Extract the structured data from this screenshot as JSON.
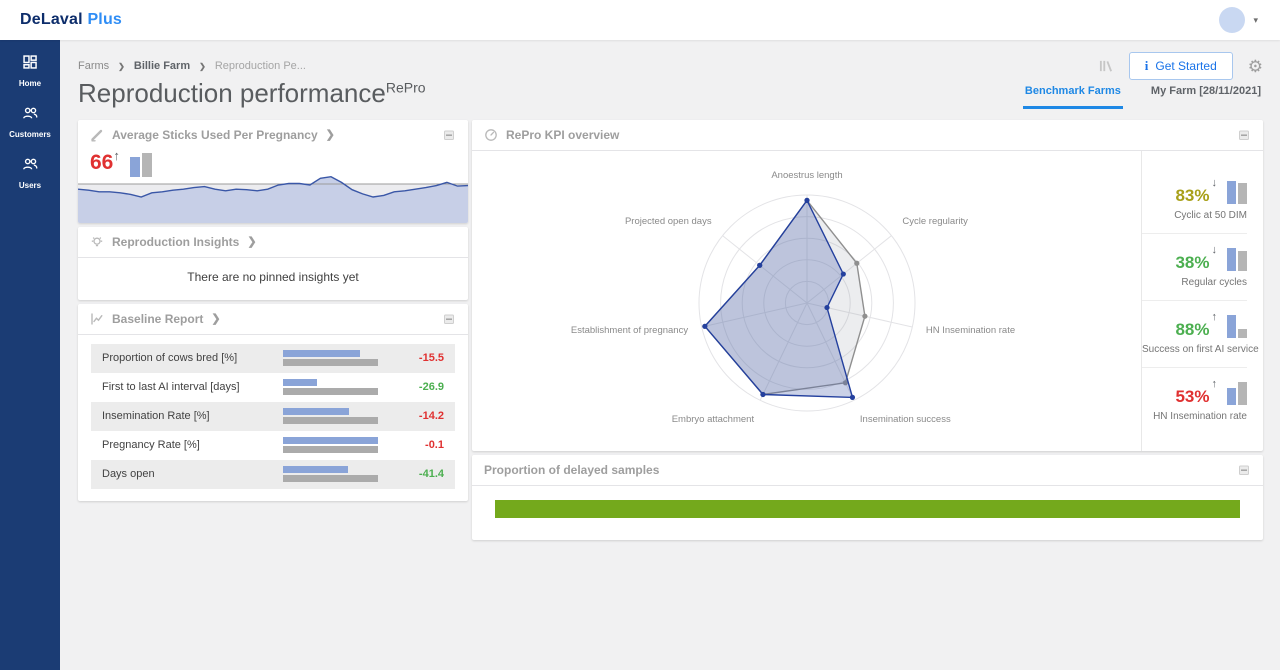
{
  "header": {
    "logo_primary": "DeLaval",
    "logo_secondary": "Plus"
  },
  "sidebar": {
    "items": [
      {
        "label": "Home",
        "icon": "dashboard-icon"
      },
      {
        "label": "Customers",
        "icon": "people-icon"
      },
      {
        "label": "Users",
        "icon": "people-icon"
      }
    ]
  },
  "page": {
    "breadcrumb": [
      "Farms",
      "Billie Farm",
      "Reproduction Pe..."
    ],
    "title": "Reproduction performance",
    "title_superscript": "RePro",
    "get_started_label": "Get Started",
    "tabs": [
      {
        "label": "Benchmark Farms",
        "active": true
      },
      {
        "label": "My Farm [28/11/2021]",
        "active": false
      }
    ]
  },
  "cards": {
    "avg_sticks": {
      "title": "Average Sticks Used Per Pregnancy",
      "value": "66",
      "trend": "up",
      "value_color": "#e03131",
      "mini_bars": {
        "farm": 0.8,
        "benchmark": 0.95
      }
    },
    "insights": {
      "title": "Reproduction Insights",
      "empty_message": "There are no pinned insights yet"
    },
    "baseline": {
      "title": "Baseline Report"
    },
    "kpi_overview": {
      "title": "RePro KPI overview",
      "kpis": [
        {
          "value": "83%",
          "trend": "down",
          "color": "#a8a019",
          "label": "Cyclic at 50 DIM",
          "bars": {
            "farm": 0.88,
            "benchmark": 0.82
          }
        },
        {
          "value": "38%",
          "trend": "down",
          "color": "#4caf50",
          "label": "Regular cycles",
          "bars": {
            "farm": 0.9,
            "benchmark": 0.75
          }
        },
        {
          "value": "88%",
          "trend": "up",
          "color": "#4caf50",
          "label": "Success on first AI service",
          "bars": {
            "farm": 0.9,
            "benchmark": 0.35
          }
        },
        {
          "value": "53%",
          "trend": "up",
          "color": "#e03131",
          "label": "HN Insemination rate",
          "bars": {
            "farm": 0.65,
            "benchmark": 0.9
          }
        }
      ]
    },
    "delayed_samples": {
      "title": "Proportion of delayed samples"
    }
  },
  "chart_data": [
    {
      "type": "area",
      "name": "average_sticks_trend",
      "title": "Average Sticks Used Per Pregnancy",
      "note": "unlabeled sparkline; y values normalized 0=top 1=bottom of plot, benchmark reference line drawn flat",
      "reference_line_y": 0.25,
      "values_normalized_y": [
        0.35,
        0.37,
        0.4,
        0.4,
        0.42,
        0.45,
        0.5,
        0.42,
        0.4,
        0.37,
        0.35,
        0.32,
        0.3,
        0.35,
        0.38,
        0.35,
        0.36,
        0.38,
        0.35,
        0.27,
        0.24,
        0.24,
        0.27,
        0.14,
        0.11,
        0.22,
        0.36,
        0.44,
        0.5,
        0.47,
        0.4,
        0.38,
        0.35,
        0.32,
        0.28,
        0.22,
        0.29,
        0.28
      ],
      "line_color": "#3a57a7",
      "fill_color": "#c7cfe7",
      "reference_color": "#9b9b9b",
      "reference_fill": "#ececef"
    },
    {
      "type": "radar",
      "name": "repro_kpi_overview",
      "title": "RePro KPI overview",
      "axes": [
        "Anoestrus length",
        "Cycle regularity",
        "HN Insemination rate",
        "Insemination success",
        "Embryo attachment",
        "Establishment of pregnancy",
        "Projected open days"
      ],
      "rings": 5,
      "max": 1,
      "series": [
        {
          "name": "Benchmark",
          "color": "#8f8f8f",
          "fill": "rgba(150,155,165,0.18)",
          "values": [
            0.95,
            0.59,
            0.55,
            0.82,
            0.94,
            0.97,
            0.56
          ]
        },
        {
          "name": "My Farm",
          "color": "#24409e",
          "fill": "rgba(80,102,177,0.30)",
          "values": [
            0.95,
            0.43,
            0.19,
            0.97,
            0.94,
            0.97,
            0.56
          ]
        }
      ]
    },
    {
      "type": "bar",
      "name": "baseline_report",
      "title": "Baseline Report",
      "categories": [
        "Proportion of cows bred [%]",
        "First to last AI interval [days]",
        "Insemination Rate [%]",
        "Pregnancy Rate [%]",
        "Days open"
      ],
      "series": [
        {
          "name": "farm",
          "color": "#8aa4d8",
          "values": [
            0.81,
            0.36,
            0.69,
            1.0,
            0.68
          ]
        },
        {
          "name": "benchmark",
          "color": "#ababab",
          "values": [
            1,
            1,
            1,
            1,
            1
          ]
        }
      ],
      "value_labels": [
        "-15.5",
        "-26.9",
        "-14.2",
        "-0.1",
        "-41.4"
      ],
      "value_colors": [
        "#e03131",
        "#4caf50",
        "#e03131",
        "#e03131",
        "#4caf50"
      ]
    },
    {
      "type": "bar",
      "name": "proportion_of_delayed_samples",
      "title": "Proportion of delayed samples",
      "categories": [
        "delayed"
      ],
      "values": [
        1.0
      ],
      "color": "#74a91c"
    }
  ]
}
